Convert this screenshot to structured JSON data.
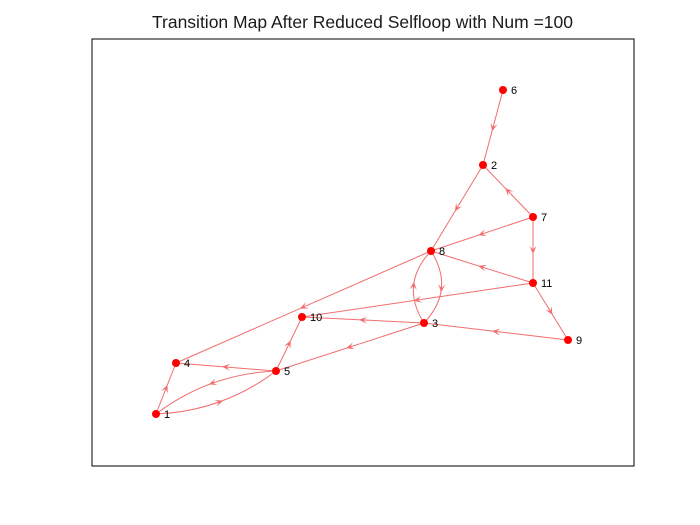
{
  "title": "Transition Map After Reduced Selfloop with Num =100",
  "colors": {
    "edge": "#f26d6d",
    "node": "#ff0000",
    "axes": "#000000"
  },
  "nodes": [
    {
      "id": "1",
      "label": "1"
    },
    {
      "id": "2",
      "label": "2"
    },
    {
      "id": "3",
      "label": "3"
    },
    {
      "id": "4",
      "label": "4"
    },
    {
      "id": "5",
      "label": "5"
    },
    {
      "id": "6",
      "label": "6"
    },
    {
      "id": "7",
      "label": "7"
    },
    {
      "id": "8",
      "label": "8"
    },
    {
      "id": "9",
      "label": "9"
    },
    {
      "id": "10",
      "label": "10"
    },
    {
      "id": "11",
      "label": "11"
    }
  ],
  "edges": [
    {
      "from": "6",
      "to": "2"
    },
    {
      "from": "7",
      "to": "2"
    },
    {
      "from": "2",
      "to": "8"
    },
    {
      "from": "7",
      "to": "8"
    },
    {
      "from": "7",
      "to": "11"
    },
    {
      "from": "11",
      "to": "8"
    },
    {
      "from": "11",
      "to": "10"
    },
    {
      "from": "11",
      "to": "9"
    },
    {
      "from": "9",
      "to": "3"
    },
    {
      "from": "8",
      "to": "3"
    },
    {
      "from": "3",
      "to": "8"
    },
    {
      "from": "8",
      "to": "4"
    },
    {
      "from": "3",
      "to": "10"
    },
    {
      "from": "3",
      "to": "5"
    },
    {
      "from": "5",
      "to": "10"
    },
    {
      "from": "5",
      "to": "4"
    },
    {
      "from": "5",
      "to": "1"
    },
    {
      "from": "1",
      "to": "5"
    },
    {
      "from": "1",
      "to": "4"
    }
  ]
}
